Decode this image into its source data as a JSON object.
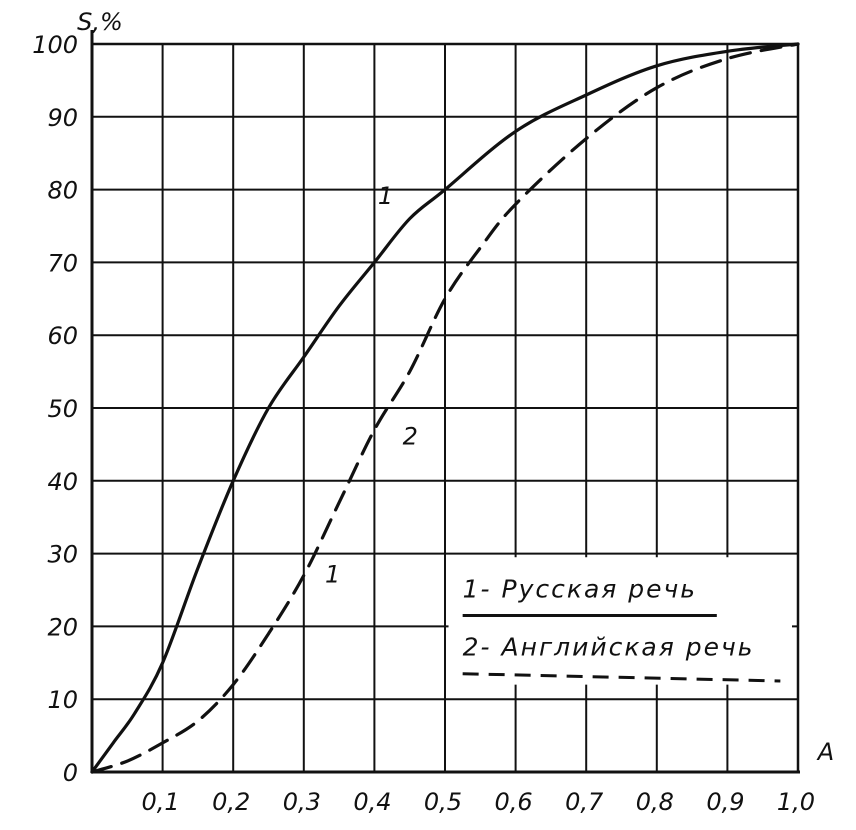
{
  "chart_data": {
    "type": "line",
    "xlabel": "A",
    "ylabel": "S,%",
    "xlim": [
      0,
      1.0
    ],
    "ylim": [
      0,
      100
    ],
    "grid": true,
    "legend_placement": "bottom-right",
    "x_ticks": [
      "0,1",
      "0,2",
      "0,3",
      "0,4",
      "0,5",
      "0,6",
      "0,7",
      "0,8",
      "0,9",
      "1,0"
    ],
    "y_ticks": [
      "0",
      "10",
      "20",
      "30",
      "40",
      "50",
      "60",
      "70",
      "80",
      "90",
      "100"
    ],
    "series": [
      {
        "name": "1- Русская речь",
        "label": "1",
        "style": "solid",
        "x": [
          0,
          0.03,
          0.06,
          0.1,
          0.15,
          0.2,
          0.25,
          0.3,
          0.35,
          0.4,
          0.45,
          0.5,
          0.6,
          0.7,
          0.8,
          0.9,
          1.0
        ],
        "y": [
          0,
          4,
          8,
          15,
          28,
          40,
          50,
          57,
          64,
          70,
          76,
          80,
          88,
          93,
          97,
          99,
          100
        ]
      },
      {
        "name": "2- Английская речь",
        "label": "2",
        "style": "dashed",
        "x": [
          0,
          0.05,
          0.1,
          0.15,
          0.2,
          0.25,
          0.3,
          0.35,
          0.4,
          0.45,
          0.5,
          0.55,
          0.6,
          0.7,
          0.8,
          0.9,
          1.0
        ],
        "y": [
          0,
          1.5,
          4,
          7,
          12,
          19,
          27,
          37,
          47,
          55,
          65,
          72,
          78,
          87,
          94,
          98,
          100
        ]
      }
    ],
    "annotations": [
      "1"
    ]
  }
}
